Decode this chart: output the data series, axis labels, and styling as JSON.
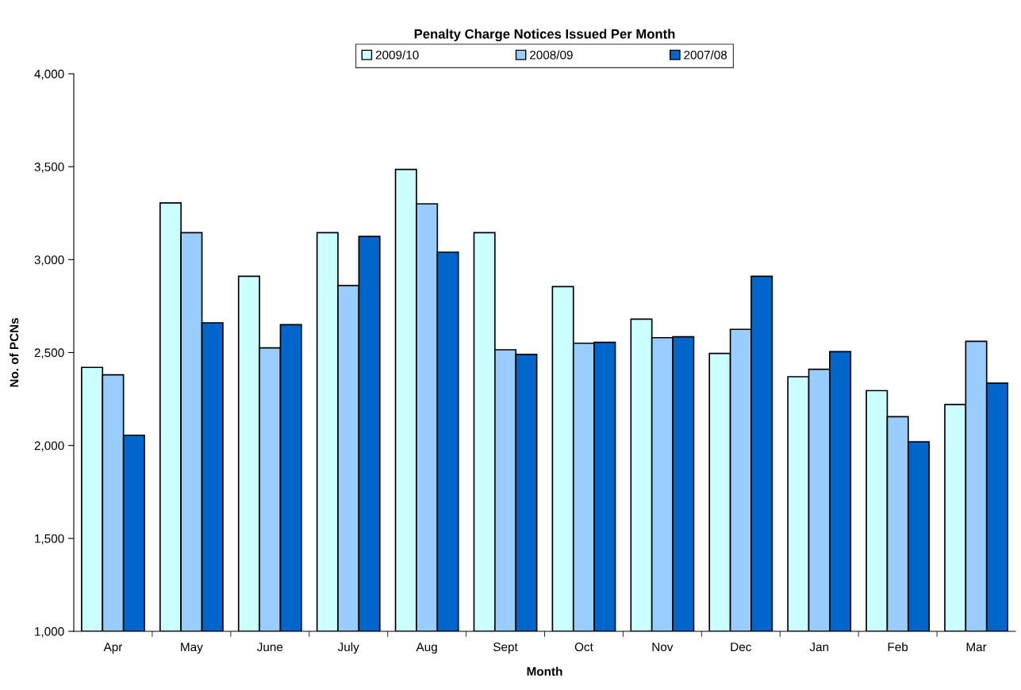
{
  "chart_data": {
    "type": "bar",
    "title": "Penalty Charge Notices Issued Per Month",
    "xlabel": "Month",
    "ylabel": "No. of PCNs",
    "categories": [
      "Apr",
      "May",
      "June",
      "July",
      "Aug",
      "Sept",
      "Oct",
      "Nov",
      "Dec",
      "Jan",
      "Feb",
      "Mar"
    ],
    "series": [
      {
        "name": "2009/10",
        "color": "#ccffff",
        "values": [
          2420,
          3305,
          2910,
          3145,
          3485,
          3145,
          2855,
          2680,
          2495,
          2370,
          2295,
          2220
        ]
      },
      {
        "name": "2008/09",
        "color": "#99ccff",
        "values": [
          2380,
          3145,
          2525,
          2860,
          3300,
          2515,
          2550,
          2580,
          2625,
          2410,
          2155,
          2560
        ]
      },
      {
        "name": "2007/08",
        "color": "#0066cc",
        "values": [
          2055,
          2660,
          2650,
          3125,
          3040,
          2490,
          2555,
          2585,
          2910,
          2505,
          2020,
          2335
        ]
      }
    ],
    "ylim": [
      1000,
      4000
    ],
    "yticks": [
      {
        "value": 1000,
        "label": "1,000"
      },
      {
        "value": 1500,
        "label": "1,500"
      },
      {
        "value": 2000,
        "label": "2,000"
      },
      {
        "value": 2500,
        "label": "2,500"
      },
      {
        "value": 3000,
        "label": "3,000"
      },
      {
        "value": 3500,
        "label": "3,500"
      },
      {
        "value": 4000,
        "label": "4,000"
      }
    ],
    "grid": false,
    "legend": "top"
  }
}
